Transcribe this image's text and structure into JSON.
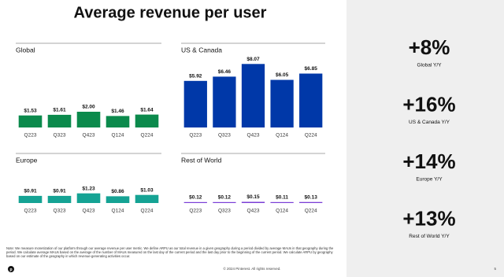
{
  "title": "Average revenue per user",
  "chart_data": [
    {
      "type": "bar",
      "title": "Global",
      "categories": [
        "Q223",
        "Q323",
        "Q423",
        "Q124",
        "Q224"
      ],
      "values": [
        1.53,
        1.61,
        2.0,
        1.46,
        1.64
      ],
      "value_labels": [
        "$1.53",
        "$1.61",
        "$2.00",
        "$1.46",
        "$1.64"
      ],
      "color": "#0b8a4c",
      "ylim": [
        0,
        10
      ]
    },
    {
      "type": "bar",
      "title": "US & Canada",
      "categories": [
        "Q223",
        "Q323",
        "Q423",
        "Q124",
        "Q224"
      ],
      "values": [
        5.92,
        6.46,
        8.07,
        6.05,
        6.85
      ],
      "value_labels": [
        "$5.92",
        "$6.46",
        "$8.07",
        "$6.05",
        "$6.85"
      ],
      "color": "#0038a8",
      "ylim": [
        0,
        10
      ]
    },
    {
      "type": "bar",
      "title": "Europe",
      "categories": [
        "Q223",
        "Q323",
        "Q423",
        "Q124",
        "Q224"
      ],
      "values": [
        0.91,
        0.91,
        1.23,
        0.86,
        1.03
      ],
      "value_labels": [
        "$0.91",
        "$0.91",
        "$1.23",
        "$0.86",
        "$1.03"
      ],
      "color": "#15a394",
      "ylim": [
        0,
        10
      ]
    },
    {
      "type": "bar",
      "title": "Rest of World",
      "categories": [
        "Q223",
        "Q323",
        "Q423",
        "Q124",
        "Q224"
      ],
      "values": [
        0.12,
        0.12,
        0.15,
        0.11,
        0.13
      ],
      "value_labels": [
        "$0.12",
        "$0.12",
        "$0.15",
        "$0.11",
        "$0.13"
      ],
      "color": "#7b3fd6",
      "ylim": [
        0,
        10
      ]
    }
  ],
  "stats": [
    {
      "value": "+8%",
      "label": "Global Y/Y"
    },
    {
      "value": "+16%",
      "label": "US & Canada Y/Y"
    },
    {
      "value": "+14%",
      "label": "Europe Y/Y"
    },
    {
      "value": "+13%",
      "label": "Rest of World Y/Y"
    }
  ],
  "footnote": "Note: We measure monetization of our platform through our average revenue per user metric. We define ARPU as our total revenue in a given geography during a period divided by average MAUs in that geography during the period. We calculate average MAUs based on the average of the number of MAUs measured on the last day of the current period and the last day prior to the beginning of the current period. We calculate ARPU by geography based on our estimate of the geography in which revenue-generating activities occur.",
  "copyright": "© 2024 Pinterest. All rights reserved.",
  "page_number": "5"
}
